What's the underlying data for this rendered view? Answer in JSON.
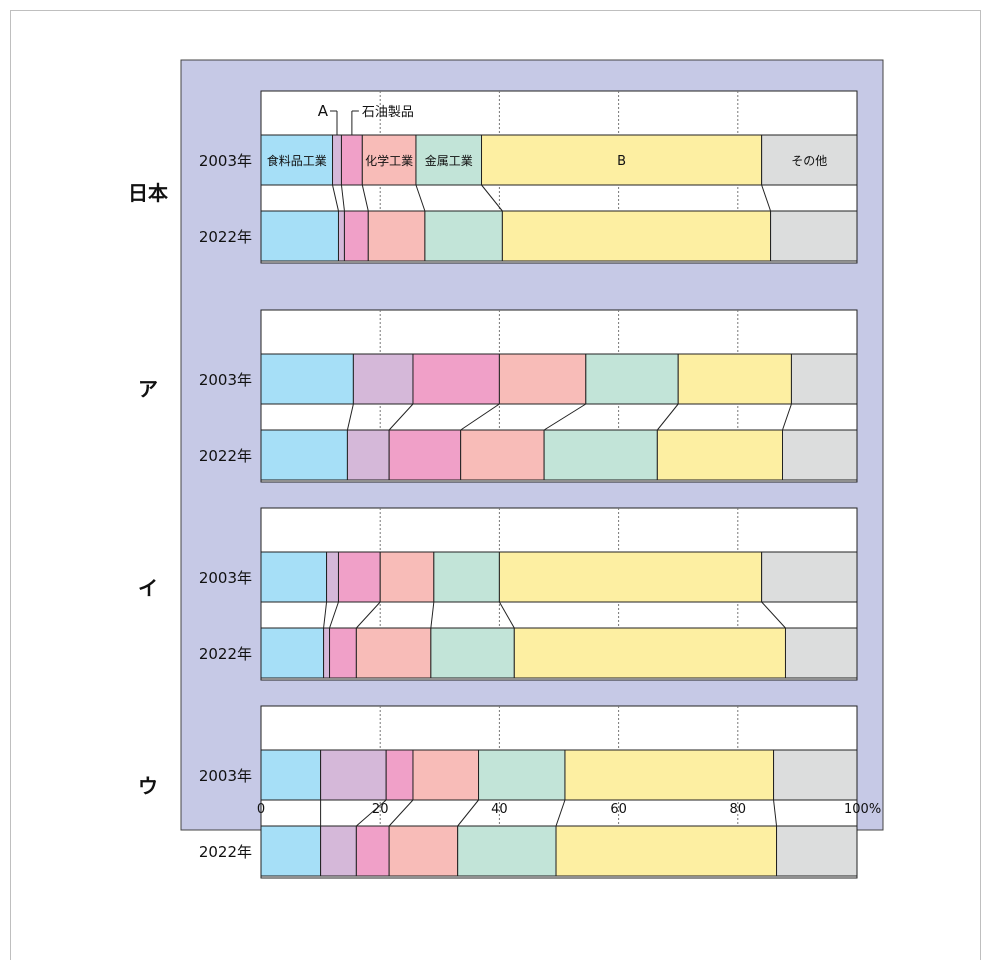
{
  "chart_data": {
    "type": "bar",
    "stacked": true,
    "orientation": "horizontal",
    "percent_scale": true,
    "xlim": [
      0,
      100
    ],
    "x_ticks": [
      "0",
      "20",
      "40",
      "60",
      "80",
      "100%"
    ],
    "grid": "vertical dotted at 20, 40, 60, 80",
    "categories_legend": [
      "食料品工業",
      "A",
      "石油製品",
      "化学工業",
      "金属工業",
      "B",
      "その他"
    ],
    "segment_labels": {
      "food": "食料品工業",
      "a": "A",
      "petroleum": "石油製品",
      "chemical": "化学工業",
      "metal": "金属工業",
      "b": "B",
      "other": "その他"
    },
    "colors": [
      "#a6dff7",
      "#d5b8d9",
      "#f0a0c8",
      "#f8bcb8",
      "#c2e4d8",
      "#fdefa2",
      "#dcdddd"
    ],
    "background_color": "#c6c9e6",
    "groups": [
      {
        "name": "日本",
        "rows": [
          {
            "year": "2003年",
            "values": [
              12.0,
              1.5,
              3.5,
              9.0,
              11.0,
              47.0,
              16.0
            ]
          },
          {
            "year": "2022年",
            "values": [
              13.0,
              1.0,
              4.0,
              9.5,
              13.0,
              45.0,
              14.5
            ]
          }
        ]
      },
      {
        "name": "ア",
        "rows": [
          {
            "year": "2003年",
            "values": [
              15.5,
              10.0,
              14.5,
              14.5,
              15.5,
              19.0,
              11.0
            ]
          },
          {
            "year": "2022年",
            "values": [
              14.5,
              7.0,
              12.0,
              14.0,
              19.0,
              21.0,
              12.5
            ]
          }
        ]
      },
      {
        "name": "イ",
        "rows": [
          {
            "year": "2003年",
            "values": [
              11.0,
              2.0,
              7.0,
              9.0,
              11.0,
              44.0,
              16.0
            ]
          },
          {
            "year": "2022年",
            "values": [
              10.5,
              1.0,
              4.5,
              12.5,
              14.0,
              45.5,
              12.0
            ]
          }
        ]
      },
      {
        "name": "ウ",
        "rows": [
          {
            "year": "2003年",
            "values": [
              10.0,
              11.0,
              4.5,
              11.0,
              14.5,
              35.0,
              14.0
            ]
          },
          {
            "year": "2022年",
            "values": [
              10.0,
              6.0,
              5.5,
              11.5,
              16.5,
              37.0,
              13.5
            ]
          }
        ]
      }
    ]
  }
}
